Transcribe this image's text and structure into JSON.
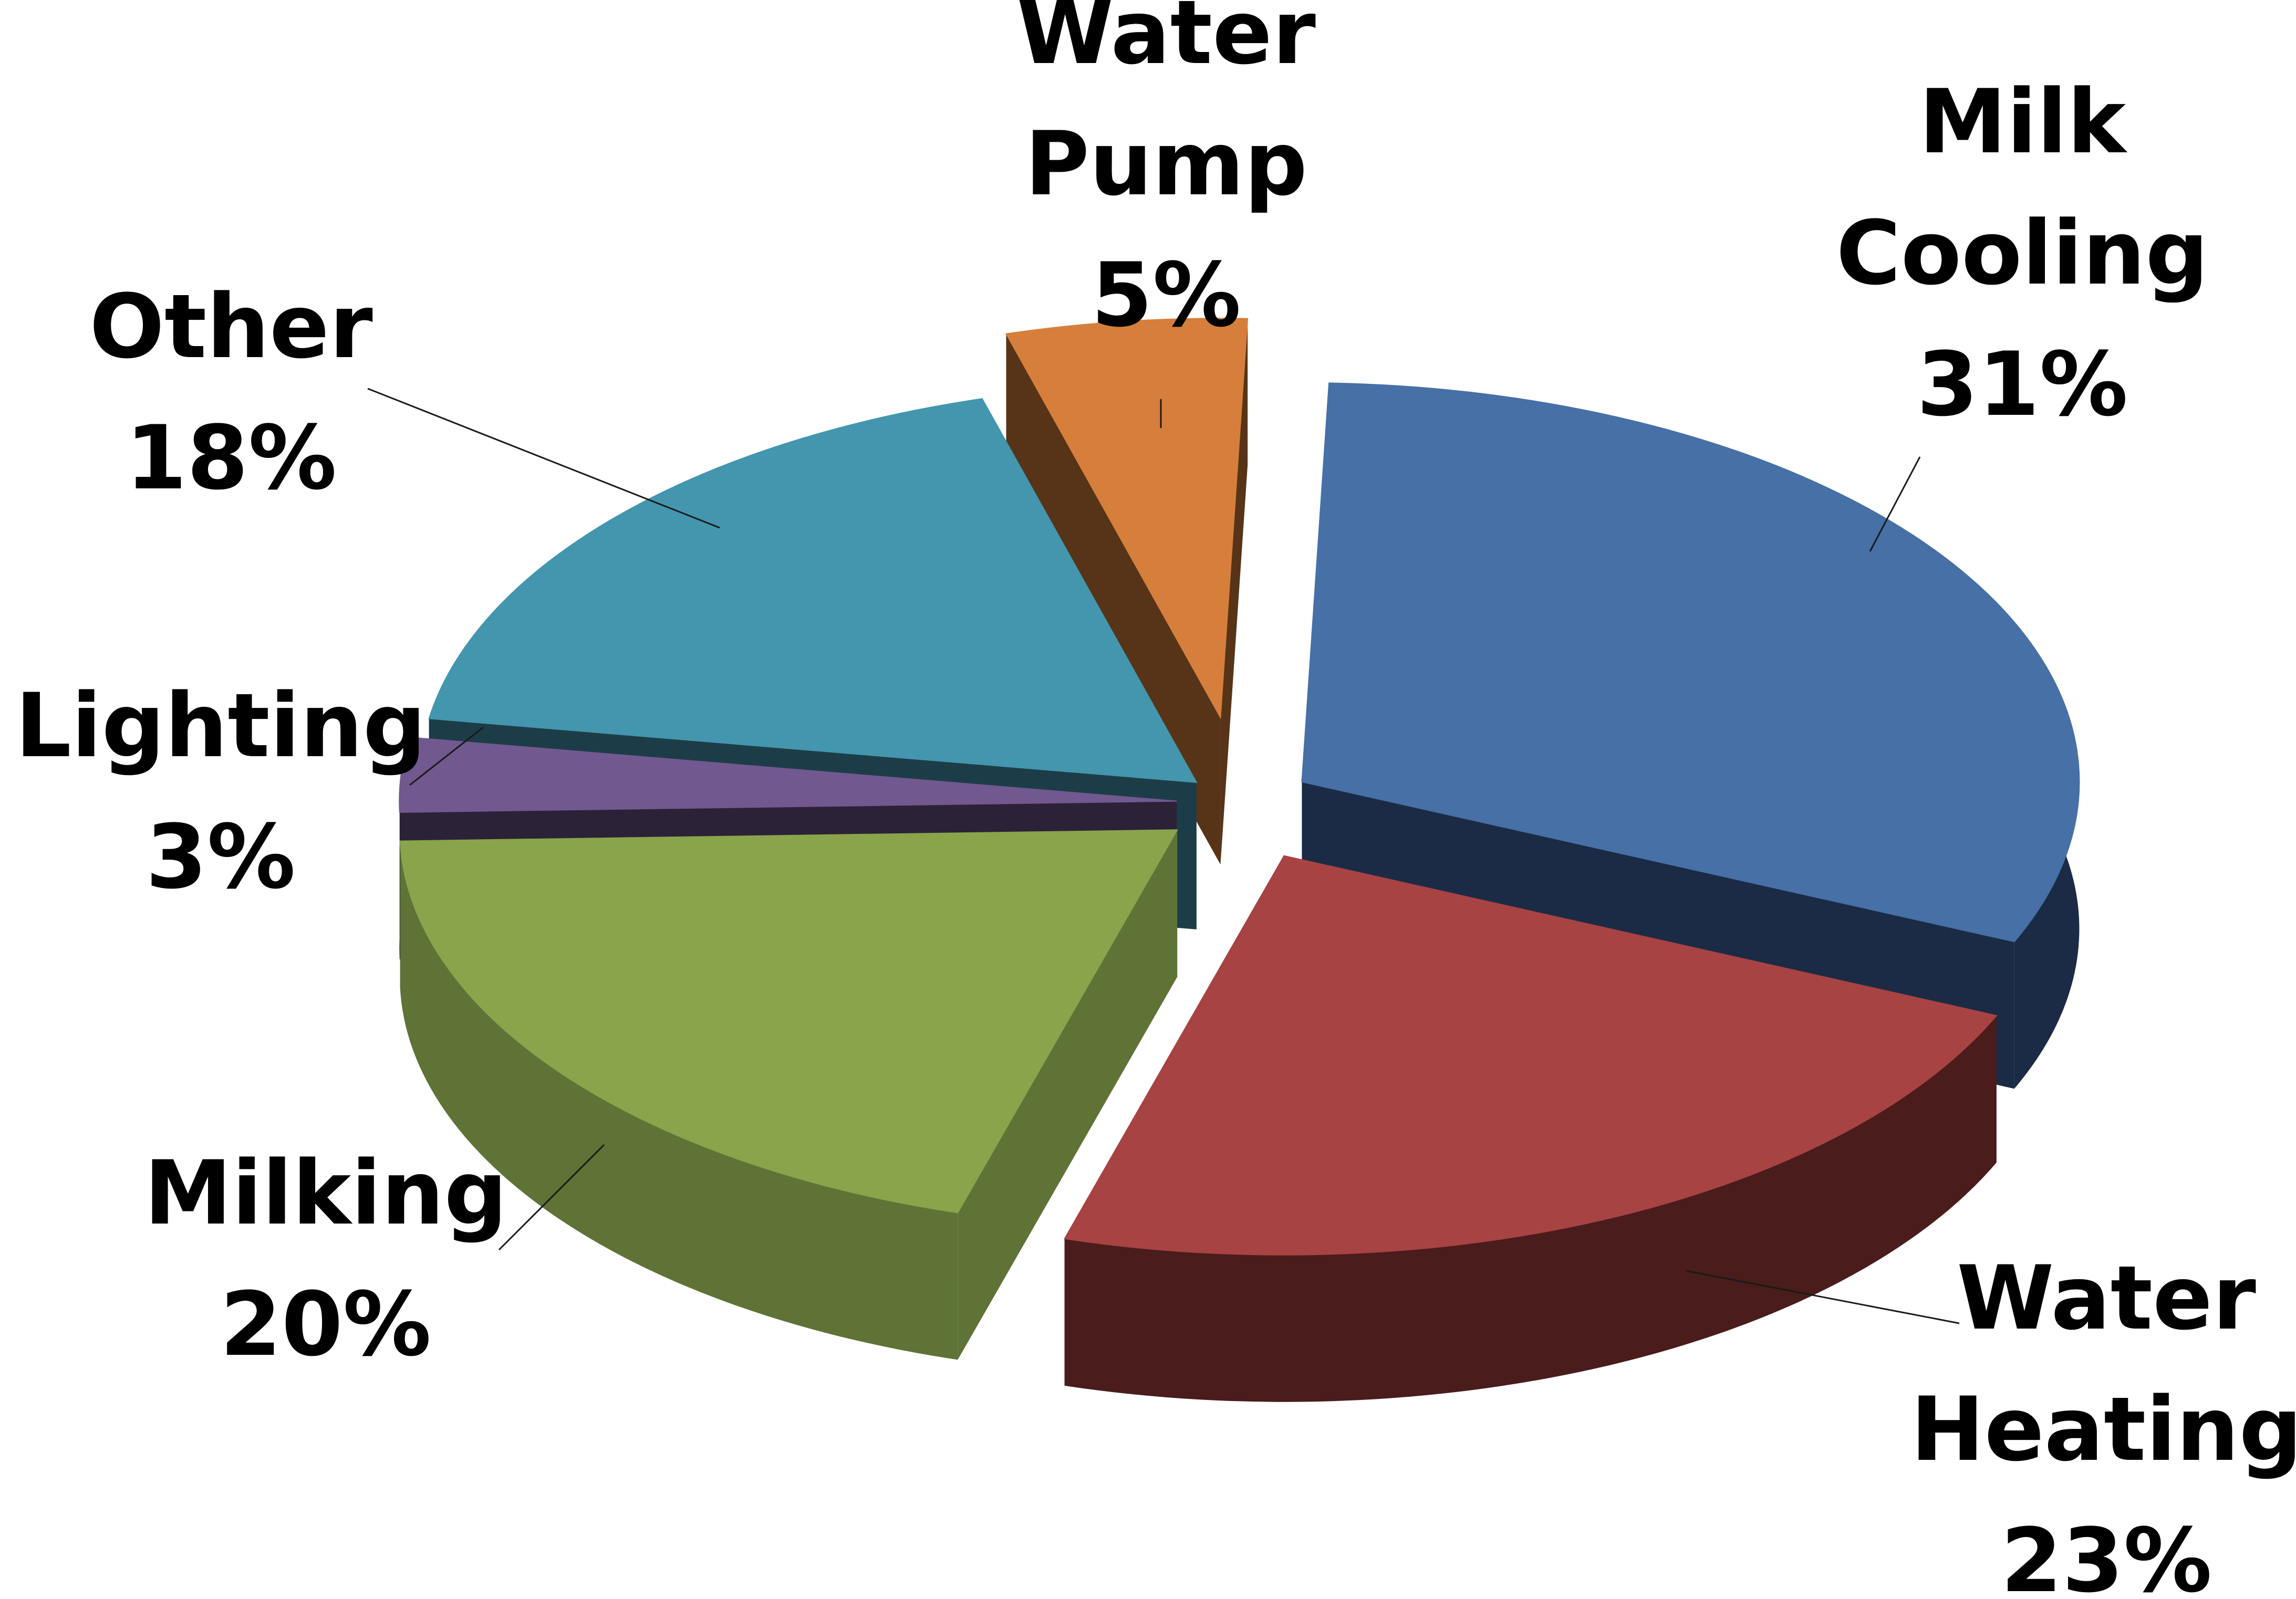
{
  "chart_data": {
    "type": "pie",
    "style": "3d-exploded",
    "title": "",
    "slices": [
      {
        "name": "Milk Cooling",
        "label_lines": [
          "Milk",
          "Cooling"
        ],
        "value": 31,
        "value_label": "31%",
        "color": "#4670A6",
        "side_color": "#1B2B45"
      },
      {
        "name": "Water Heating",
        "label_lines": [
          "Water",
          "Heating"
        ],
        "value": 23,
        "value_label": "23%",
        "color": "#A84343",
        "side_color": "#4A1C1C"
      },
      {
        "name": "Milking",
        "label_lines": [
          "Milking"
        ],
        "value": 20,
        "value_label": "20%",
        "color": "#89A44B",
        "side_color": "#5E7335"
      },
      {
        "name": "Lighting",
        "label_lines": [
          "Lighting"
        ],
        "value": 3,
        "value_label": "3%",
        "color": "#71588F",
        "side_color": "#2B2238"
      },
      {
        "name": "Other",
        "label_lines": [
          "Other"
        ],
        "value": 18,
        "value_label": "18%",
        "color": "#4396AD",
        "side_color": "#1C3D47"
      },
      {
        "name": "Water Pump",
        "label_lines": [
          "Water",
          "Pump"
        ],
        "value": 5,
        "value_label": "5%",
        "color": "#D67F3C",
        "side_color": "#573417"
      }
    ]
  }
}
